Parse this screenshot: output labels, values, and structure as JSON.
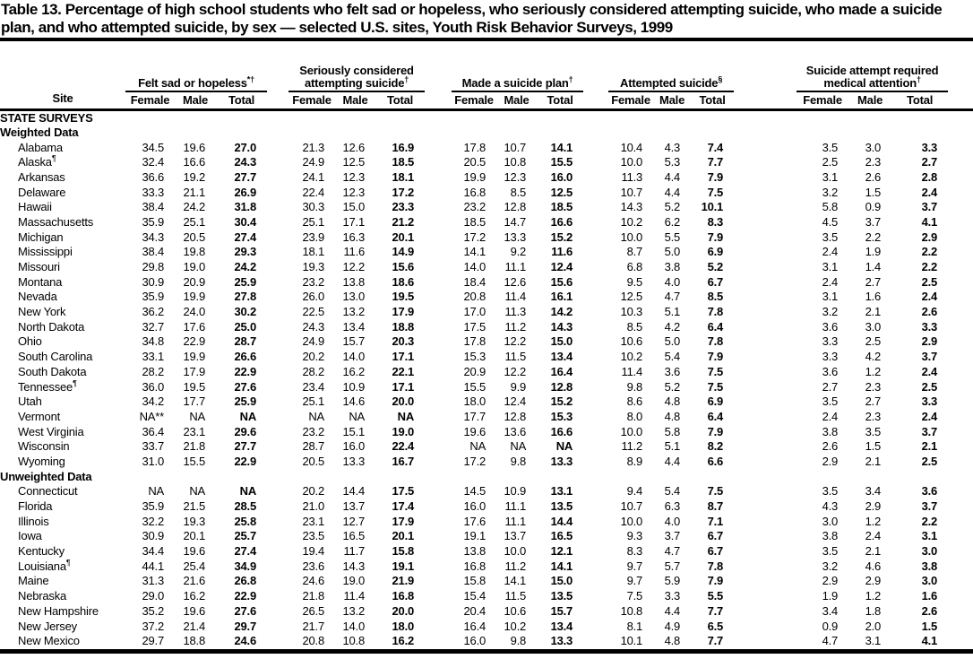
{
  "title": "Table 13. Percentage of high school students who felt sad or hopeless, who seriously considered attempting suicide, who made a suicide plan, and who attempted suicide, by sex — selected U.S. sites, Youth Risk Behavior Surveys, 1999",
  "columns": {
    "site_header": "Site",
    "sub_headers": [
      "Female",
      "Male",
      "Total"
    ],
    "groups": [
      {
        "label": "Felt sad or hopeless",
        "marker": "*†"
      },
      {
        "label": "Seriously considered attempting suicide",
        "marker": "†"
      },
      {
        "label": "Made a suicide plan",
        "marker": "†"
      },
      {
        "label": "Attempted suicide",
        "marker": "§"
      },
      {
        "label": "Suicide attempt required medical attention",
        "marker": "†"
      }
    ]
  },
  "sections": [
    {
      "heading": "STATE SURVEYS",
      "rows": []
    },
    {
      "heading": "Weighted Data",
      "rows": [
        {
          "site": "Alabama",
          "sup": "",
          "values": [
            "34.5",
            "19.6",
            "27.0",
            "21.3",
            "12.6",
            "16.9",
            "17.8",
            "10.7",
            "14.1",
            "10.4",
            "4.3",
            "7.4",
            "3.5",
            "3.0",
            "3.3"
          ]
        },
        {
          "site": "Alaska",
          "sup": "¶",
          "values": [
            "32.4",
            "16.6",
            "24.3",
            "24.9",
            "12.5",
            "18.5",
            "20.5",
            "10.8",
            "15.5",
            "10.0",
            "5.3",
            "7.7",
            "2.5",
            "2.3",
            "2.7"
          ]
        },
        {
          "site": "Arkansas",
          "sup": "",
          "values": [
            "36.6",
            "19.2",
            "27.7",
            "24.1",
            "12.3",
            "18.1",
            "19.9",
            "12.3",
            "16.0",
            "11.3",
            "4.4",
            "7.9",
            "3.1",
            "2.6",
            "2.8"
          ]
        },
        {
          "site": "Delaware",
          "sup": "",
          "values": [
            "33.3",
            "21.1",
            "26.9",
            "22.4",
            "12.3",
            "17.2",
            "16.8",
            "8.5",
            "12.5",
            "10.7",
            "4.4",
            "7.5",
            "3.2",
            "1.5",
            "2.4"
          ]
        },
        {
          "site": "Hawaii",
          "sup": "",
          "values": [
            "38.4",
            "24.2",
            "31.8",
            "30.3",
            "15.0",
            "23.3",
            "23.2",
            "12.8",
            "18.5",
            "14.3",
            "5.2",
            "10.1",
            "5.8",
            "0.9",
            "3.7"
          ]
        },
        {
          "site": "Massachusetts",
          "sup": "",
          "values": [
            "35.9",
            "25.1",
            "30.4",
            "25.1",
            "17.1",
            "21.2",
            "18.5",
            "14.7",
            "16.6",
            "10.2",
            "6.2",
            "8.3",
            "4.5",
            "3.7",
            "4.1"
          ]
        },
        {
          "site": "Michigan",
          "sup": "",
          "values": [
            "34.3",
            "20.5",
            "27.4",
            "23.9",
            "16.3",
            "20.1",
            "17.2",
            "13.3",
            "15.2",
            "10.0",
            "5.5",
            "7.9",
            "3.5",
            "2.2",
            "2.9"
          ]
        },
        {
          "site": "Mississippi",
          "sup": "",
          "values": [
            "38.4",
            "19.8",
            "29.3",
            "18.1",
            "11.6",
            "14.9",
            "14.1",
            "9.2",
            "11.6",
            "8.7",
            "5.0",
            "6.9",
            "2.4",
            "1.9",
            "2.2"
          ]
        },
        {
          "site": "Missouri",
          "sup": "",
          "values": [
            "29.8",
            "19.0",
            "24.2",
            "19.3",
            "12.2",
            "15.6",
            "14.0",
            "11.1",
            "12.4",
            "6.8",
            "3.8",
            "5.2",
            "3.1",
            "1.4",
            "2.2"
          ]
        },
        {
          "site": "Montana",
          "sup": "",
          "values": [
            "30.9",
            "20.9",
            "25.9",
            "23.2",
            "13.8",
            "18.6",
            "18.4",
            "12.6",
            "15.6",
            "9.5",
            "4.0",
            "6.7",
            "2.4",
            "2.7",
            "2.5"
          ]
        },
        {
          "site": "Nevada",
          "sup": "",
          "values": [
            "35.9",
            "19.9",
            "27.8",
            "26.0",
            "13.0",
            "19.5",
            "20.8",
            "11.4",
            "16.1",
            "12.5",
            "4.7",
            "8.5",
            "3.1",
            "1.6",
            "2.4"
          ]
        },
        {
          "site": "New York",
          "sup": "",
          "values": [
            "36.2",
            "24.0",
            "30.2",
            "22.5",
            "13.2",
            "17.9",
            "17.0",
            "11.3",
            "14.2",
            "10.3",
            "5.1",
            "7.8",
            "3.2",
            "2.1",
            "2.6"
          ]
        },
        {
          "site": "North Dakota",
          "sup": "",
          "values": [
            "32.7",
            "17.6",
            "25.0",
            "24.3",
            "13.4",
            "18.8",
            "17.5",
            "11.2",
            "14.3",
            "8.5",
            "4.2",
            "6.4",
            "3.6",
            "3.0",
            "3.3"
          ]
        },
        {
          "site": "Ohio",
          "sup": "",
          "values": [
            "34.8",
            "22.9",
            "28.7",
            "24.9",
            "15.7",
            "20.3",
            "17.8",
            "12.2",
            "15.0",
            "10.6",
            "5.0",
            "7.8",
            "3.3",
            "2.5",
            "2.9"
          ]
        },
        {
          "site": "South Carolina",
          "sup": "",
          "values": [
            "33.1",
            "19.9",
            "26.6",
            "20.2",
            "14.0",
            "17.1",
            "15.3",
            "11.5",
            "13.4",
            "10.2",
            "5.4",
            "7.9",
            "3.3",
            "4.2",
            "3.7"
          ]
        },
        {
          "site": "South Dakota",
          "sup": "",
          "values": [
            "28.2",
            "17.9",
            "22.9",
            "28.2",
            "16.2",
            "22.1",
            "20.9",
            "12.2",
            "16.4",
            "11.4",
            "3.6",
            "7.5",
            "3.6",
            "1.2",
            "2.4"
          ]
        },
        {
          "site": "Tennessee",
          "sup": "¶",
          "values": [
            "36.0",
            "19.5",
            "27.6",
            "23.4",
            "10.9",
            "17.1",
            "15.5",
            "9.9",
            "12.8",
            "9.8",
            "5.2",
            "7.5",
            "2.7",
            "2.3",
            "2.5"
          ]
        },
        {
          "site": "Utah",
          "sup": "",
          "values": [
            "34.2",
            "17.7",
            "25.9",
            "25.1",
            "14.6",
            "20.0",
            "18.0",
            "12.4",
            "15.2",
            "8.6",
            "4.8",
            "6.9",
            "3.5",
            "2.7",
            "3.3"
          ]
        },
        {
          "site": "Vermont",
          "sup": "",
          "values": [
            "NA**",
            "NA",
            "NA",
            "NA",
            "NA",
            "NA",
            "17.7",
            "12.8",
            "15.3",
            "8.0",
            "4.8",
            "6.4",
            "2.4",
            "2.3",
            "2.4"
          ]
        },
        {
          "site": "West Virginia",
          "sup": "",
          "values": [
            "36.4",
            "23.1",
            "29.6",
            "23.2",
            "15.1",
            "19.0",
            "19.6",
            "13.6",
            "16.6",
            "10.0",
            "5.8",
            "7.9",
            "3.8",
            "3.5",
            "3.7"
          ]
        },
        {
          "site": "Wisconsin",
          "sup": "",
          "values": [
            "33.7",
            "21.8",
            "27.7",
            "28.7",
            "16.0",
            "22.4",
            "NA",
            "NA",
            "NA",
            "11.2",
            "5.1",
            "8.2",
            "2.6",
            "1.5",
            "2.1"
          ]
        },
        {
          "site": "Wyoming",
          "sup": "",
          "values": [
            "31.0",
            "15.5",
            "22.9",
            "20.5",
            "13.3",
            "16.7",
            "17.2",
            "9.8",
            "13.3",
            "8.9",
            "4.4",
            "6.6",
            "2.9",
            "2.1",
            "2.5"
          ]
        }
      ]
    },
    {
      "heading": "Unweighted Data",
      "rows": [
        {
          "site": "Connecticut",
          "sup": "",
          "values": [
            "NA",
            "NA",
            "NA",
            "20.2",
            "14.4",
            "17.5",
            "14.5",
            "10.9",
            "13.1",
            "9.4",
            "5.4",
            "7.5",
            "3.5",
            "3.4",
            "3.6"
          ]
        },
        {
          "site": "Florida",
          "sup": "",
          "values": [
            "35.9",
            "21.5",
            "28.5",
            "21.0",
            "13.7",
            "17.4",
            "16.0",
            "11.1",
            "13.5",
            "10.7",
            "6.3",
            "8.7",
            "4.3",
            "2.9",
            "3.7"
          ]
        },
        {
          "site": "Illinois",
          "sup": "",
          "values": [
            "32.2",
            "19.3",
            "25.8",
            "23.1",
            "12.7",
            "17.9",
            "17.6",
            "11.1",
            "14.4",
            "10.0",
            "4.0",
            "7.1",
            "3.0",
            "1.2",
            "2.2"
          ]
        },
        {
          "site": "Iowa",
          "sup": "",
          "values": [
            "30.9",
            "20.1",
            "25.7",
            "23.5",
            "16.5",
            "20.1",
            "19.1",
            "13.7",
            "16.5",
            "9.3",
            "3.7",
            "6.7",
            "3.8",
            "2.4",
            "3.1"
          ]
        },
        {
          "site": "Kentucky",
          "sup": "",
          "values": [
            "34.4",
            "19.6",
            "27.4",
            "19.4",
            "11.7",
            "15.8",
            "13.8",
            "10.0",
            "12.1",
            "8.3",
            "4.7",
            "6.7",
            "3.5",
            "2.1",
            "3.0"
          ]
        },
        {
          "site": "Louisiana",
          "sup": "¶",
          "values": [
            "44.1",
            "25.4",
            "34.9",
            "23.6",
            "14.3",
            "19.1",
            "16.8",
            "11.2",
            "14.1",
            "9.7",
            "5.7",
            "7.8",
            "3.2",
            "4.6",
            "3.8"
          ]
        },
        {
          "site": "Maine",
          "sup": "",
          "values": [
            "31.3",
            "21.6",
            "26.8",
            "24.6",
            "19.0",
            "21.9",
            "15.8",
            "14.1",
            "15.0",
            "9.7",
            "5.9",
            "7.9",
            "2.9",
            "2.9",
            "3.0"
          ]
        },
        {
          "site": "Nebraska",
          "sup": "",
          "values": [
            "29.0",
            "16.2",
            "22.9",
            "21.8",
            "11.4",
            "16.8",
            "15.4",
            "11.5",
            "13.5",
            "7.5",
            "3.3",
            "5.5",
            "1.9",
            "1.2",
            "1.6"
          ]
        },
        {
          "site": "New Hampshire",
          "sup": "",
          "values": [
            "35.2",
            "19.6",
            "27.6",
            "26.5",
            "13.2",
            "20.0",
            "20.4",
            "10.6",
            "15.7",
            "10.8",
            "4.4",
            "7.7",
            "3.4",
            "1.8",
            "2.6"
          ]
        },
        {
          "site": "New Jersey",
          "sup": "",
          "values": [
            "37.2",
            "21.4",
            "29.7",
            "21.7",
            "14.0",
            "18.0",
            "16.4",
            "10.2",
            "13.4",
            "8.1",
            "4.9",
            "6.5",
            "0.9",
            "2.0",
            "1.5"
          ]
        },
        {
          "site": "New Mexico",
          "sup": "",
          "values": [
            "29.7",
            "18.8",
            "24.6",
            "20.8",
            "10.8",
            "16.2",
            "16.0",
            "9.8",
            "13.3",
            "10.1",
            "4.8",
            "7.7",
            "4.7",
            "3.1",
            "4.1"
          ]
        }
      ]
    }
  ],
  "colors": {
    "text": "#000000",
    "background": "#ffffff",
    "rule": "#000000"
  }
}
